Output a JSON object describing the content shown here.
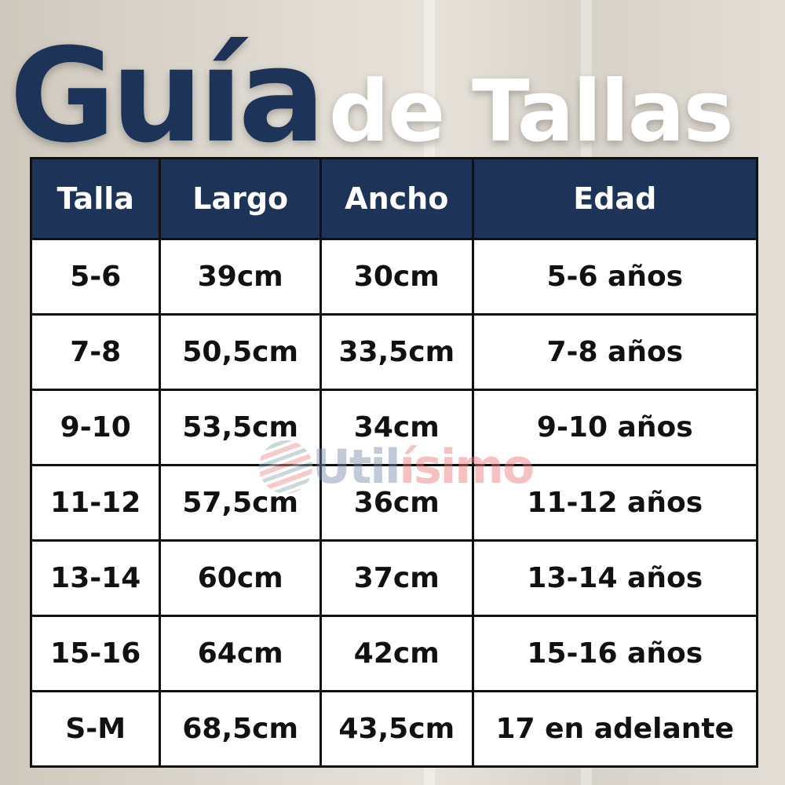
{
  "title": {
    "part1": "Guía",
    "part2": "de Tallas"
  },
  "colors": {
    "navy": "#1e3358",
    "white": "#ffffff"
  },
  "table": {
    "headers": [
      "Talla",
      "Largo",
      "Ancho",
      "Edad"
    ],
    "rows": [
      [
        "5-6",
        "39cm",
        "30cm",
        "5-6 años"
      ],
      [
        "7-8",
        "50,5cm",
        "33,5cm",
        "7-8 años"
      ],
      [
        "9-10",
        "53,5cm",
        "34cm",
        "9-10 años"
      ],
      [
        "11-12",
        "57,5cm",
        "36cm",
        "11-12 años"
      ],
      [
        "13-14",
        "60cm",
        "37cm",
        "13-14 años"
      ],
      [
        "15-16",
        "64cm",
        "42cm",
        "15-16 años"
      ],
      [
        "S-M",
        "68,5cm",
        "43,5cm",
        "17 en adelante"
      ]
    ]
  },
  "watermark": {
    "part1": "Util",
    "part2": "ísimo"
  }
}
